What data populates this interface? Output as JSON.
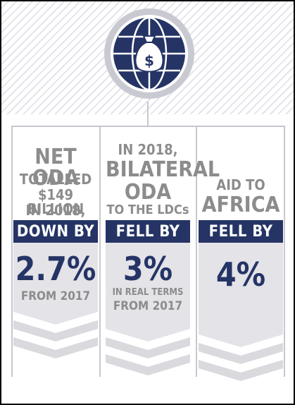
{
  "icon": "money-bag-globe-icon",
  "colors": {
    "navy": "#253465",
    "grey_text": "#8c8c8c",
    "chevron_grey": "#d9d9de",
    "line_grey": "#c7c7cf"
  },
  "columns": [
    {
      "headline_lines": [
        "NET ODA",
        "TOTALLED",
        "$149 BILLION",
        "IN 2018,"
      ],
      "badge": "DOWN BY",
      "value": "2.7%",
      "note_lines": [
        "FROM 2017"
      ]
    },
    {
      "headline_lines": [
        "IN 2018,",
        "BILATERAL",
        "ODA",
        "TO THE LDCs"
      ],
      "badge": "FELL BY",
      "value": "3%",
      "note_lines": [
        "IN REAL TERMS",
        "FROM 2017"
      ]
    },
    {
      "headline_lines": [
        "AID TO",
        "AFRICA"
      ],
      "badge": "FELL BY",
      "value": "4%",
      "note_lines": []
    }
  ]
}
